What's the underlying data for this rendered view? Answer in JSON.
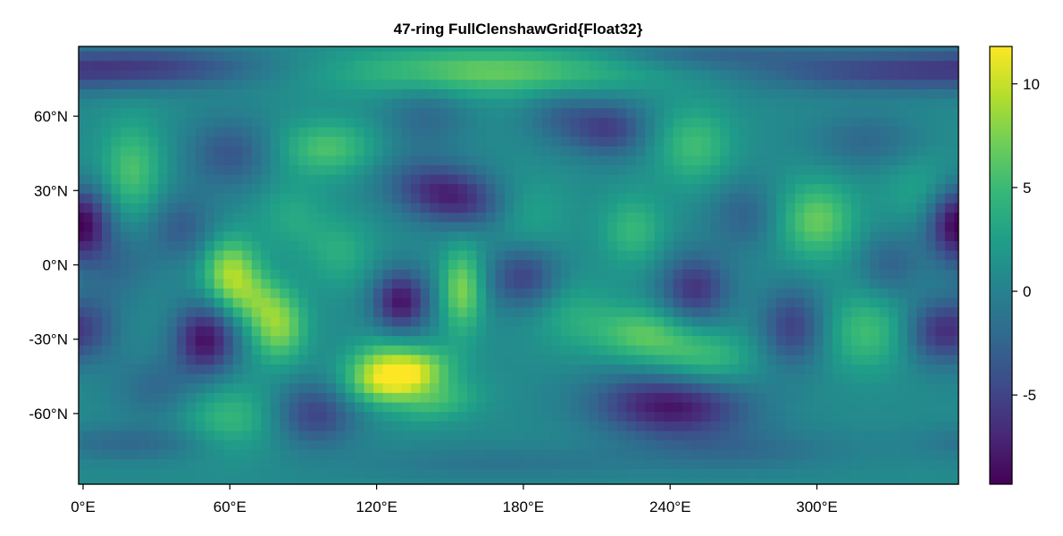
{
  "chart_data": {
    "type": "heatmap",
    "title": "47-ring FullClenshawGrid{Float32}",
    "xlabel": "",
    "ylabel": "",
    "x_range": [
      0,
      360
    ],
    "y_range": [
      -90,
      90
    ],
    "x_ticks": [
      {
        "value": 0,
        "label": "0°E"
      },
      {
        "value": 60,
        "label": "60°E"
      },
      {
        "value": 120,
        "label": "120°E"
      },
      {
        "value": 180,
        "label": "180°E"
      },
      {
        "value": 240,
        "label": "240°E"
      },
      {
        "value": 300,
        "label": "300°E"
      }
    ],
    "y_ticks": [
      {
        "value": 60,
        "label": "60°N"
      },
      {
        "value": 30,
        "label": "30°N"
      },
      {
        "value": 0,
        "label": "0°N"
      },
      {
        "value": -30,
        "label": "-30°N"
      },
      {
        "value": -60,
        "label": "-60°N"
      }
    ],
    "grid": false,
    "grid_rings": 47,
    "grid_lon_points": 94,
    "colormap": "viridis",
    "colorbar": {
      "range": [
        -9.3,
        11.8
      ],
      "placement": "right",
      "ticks": [
        {
          "value": 10,
          "label": "10"
        },
        {
          "value": 5,
          "label": "5"
        },
        {
          "value": 0,
          "label": "0"
        },
        {
          "value": -5,
          "label": "-5"
        }
      ]
    },
    "background_value": 0.8,
    "features": [
      {
        "lon": 130,
        "lat": -45,
        "value": 11.5,
        "sx": 12,
        "sy": 7,
        "tilt": -0.6
      },
      {
        "lon": 120,
        "lat": -38,
        "value": 4,
        "sx": 10,
        "sy": 8,
        "tilt": -0.5
      },
      {
        "lon": 145,
        "lat": -55,
        "value": 4,
        "sx": 12,
        "sy": 6,
        "tilt": -0.5
      },
      {
        "lon": 60,
        "lat": -3,
        "value": 8,
        "sx": 8,
        "sy": 10,
        "tilt": 0
      },
      {
        "lon": 80,
        "lat": -25,
        "value": 7,
        "sx": 8,
        "sy": 10,
        "tilt": 0
      },
      {
        "lon": 70,
        "lat": -14,
        "value": 4,
        "sx": 8,
        "sy": 8,
        "tilt": 0
      },
      {
        "lon": 155,
        "lat": -10,
        "value": 7,
        "sx": 6,
        "sy": 12,
        "tilt": 0
      },
      {
        "lon": 165,
        "lat": 78,
        "value": 6,
        "sx": 45,
        "sy": 7,
        "tilt": 0
      },
      {
        "lon": 100,
        "lat": 47,
        "value": 5,
        "sx": 14,
        "sy": 8,
        "tilt": 0
      },
      {
        "lon": 20,
        "lat": 38,
        "value": 5,
        "sx": 9,
        "sy": 14,
        "tilt": 0
      },
      {
        "lon": 250,
        "lat": 48,
        "value": 4.5,
        "sx": 11,
        "sy": 11,
        "tilt": 0
      },
      {
        "lon": 300,
        "lat": 18,
        "value": 6,
        "sx": 11,
        "sy": 11,
        "tilt": 0
      },
      {
        "lon": 225,
        "lat": 14,
        "value": 4,
        "sx": 9,
        "sy": 10,
        "tilt": 0
      },
      {
        "lon": 230,
        "lat": -28,
        "value": 5.5,
        "sx": 15,
        "sy": 8,
        "tilt": 0.1
      },
      {
        "lon": 255,
        "lat": -38,
        "value": 4,
        "sx": 14,
        "sy": 8,
        "tilt": 0
      },
      {
        "lon": 320,
        "lat": -27,
        "value": 4.5,
        "sx": 11,
        "sy": 11,
        "tilt": 0
      },
      {
        "lon": 60,
        "lat": -62,
        "value": 4,
        "sx": 14,
        "sy": 10,
        "tilt": 0
      },
      {
        "lon": 180,
        "lat": 20,
        "value": 3,
        "sx": 12,
        "sy": 10,
        "tilt": 0
      },
      {
        "lon": 105,
        "lat": 5,
        "value": 3,
        "sx": 10,
        "sy": 10,
        "tilt": 0
      },
      {
        "lon": 85,
        "lat": 20,
        "value": 2.5,
        "sx": 10,
        "sy": 10,
        "tilt": 0
      },
      {
        "lon": 345,
        "lat": 30,
        "value": 2.5,
        "sx": 12,
        "sy": 10,
        "tilt": 0
      },
      {
        "lon": 200,
        "lat": -20,
        "value": 2.5,
        "sx": 12,
        "sy": 10,
        "tilt": 0
      },
      {
        "lon": 50,
        "lat": -30,
        "value": -9.2,
        "sx": 9,
        "sy": 10,
        "tilt": 0
      },
      {
        "lon": 130,
        "lat": -15,
        "value": -9,
        "sx": 8,
        "sy": 9,
        "tilt": 0
      },
      {
        "lon": 150,
        "lat": 28,
        "value": -8.5,
        "sx": 16,
        "sy": 9,
        "tilt": 0.6
      },
      {
        "lon": 240,
        "lat": -57,
        "value": -9,
        "sx": 22,
        "sy": 9,
        "tilt": 0.2
      },
      {
        "lon": 30,
        "lat": 80,
        "value": -5,
        "sx": 35,
        "sy": 6,
        "tilt": 0
      },
      {
        "lon": 325,
        "lat": 78,
        "value": -5,
        "sx": 40,
        "sy": 6,
        "tilt": 0
      },
      {
        "lon": 255,
        "lat": 85,
        "value": -3,
        "sx": 30,
        "sy": 4,
        "tilt": 0
      },
      {
        "lon": 215,
        "lat": 55,
        "value": -6,
        "sx": 11,
        "sy": 8,
        "tilt": 0
      },
      {
        "lon": 195,
        "lat": 60,
        "value": -3,
        "sx": 10,
        "sy": 8,
        "tilt": 0
      },
      {
        "lon": 60,
        "lat": 45,
        "value": -4.5,
        "sx": 12,
        "sy": 10,
        "tilt": 0
      },
      {
        "lon": 140,
        "lat": 60,
        "value": -3,
        "sx": 12,
        "sy": 10,
        "tilt": 0
      },
      {
        "lon": 355,
        "lat": 17,
        "value": -7,
        "sx": 8,
        "sy": 11,
        "tilt": 0
      },
      {
        "lon": 3,
        "lat": 17,
        "value": -5,
        "sx": 8,
        "sy": 11,
        "tilt": 0
      },
      {
        "lon": 40,
        "lat": 15,
        "value": -4,
        "sx": 10,
        "sy": 10,
        "tilt": 0
      },
      {
        "lon": 180,
        "lat": -5,
        "value": -6,
        "sx": 10,
        "sy": 9,
        "tilt": 0
      },
      {
        "lon": 250,
        "lat": -10,
        "value": -7,
        "sx": 10,
        "sy": 10,
        "tilt": 0
      },
      {
        "lon": 290,
        "lat": -25,
        "value": -6,
        "sx": 9,
        "sy": 11,
        "tilt": 0
      },
      {
        "lon": 350,
        "lat": -27,
        "value": -6.5,
        "sx": 9,
        "sy": 9,
        "tilt": 0
      },
      {
        "lon": 5,
        "lat": -25,
        "value": -3.5,
        "sx": 8,
        "sy": 10,
        "tilt": 0
      },
      {
        "lon": 95,
        "lat": -60,
        "value": -6,
        "sx": 12,
        "sy": 9,
        "tilt": 0
      },
      {
        "lon": 30,
        "lat": -50,
        "value": -3,
        "sx": 12,
        "sy": 9,
        "tilt": 0
      },
      {
        "lon": 320,
        "lat": 50,
        "value": -3,
        "sx": 15,
        "sy": 8,
        "tilt": 0
      },
      {
        "lon": 270,
        "lat": 20,
        "value": -3.5,
        "sx": 10,
        "sy": 10,
        "tilt": 0
      },
      {
        "lon": 330,
        "lat": 0,
        "value": -3.5,
        "sx": 9,
        "sy": 9,
        "tilt": 0
      },
      {
        "lon": 15,
        "lat": 0,
        "value": -2.5,
        "sx": 10,
        "sy": 10,
        "tilt": 0
      },
      {
        "lon": 20,
        "lat": -72,
        "value": -3,
        "sx": 25,
        "sy": 5,
        "tilt": 0
      },
      {
        "lon": 270,
        "lat": -75,
        "value": -2.5,
        "sx": 30,
        "sy": 6,
        "tilt": 0
      },
      {
        "lon": 170,
        "lat": -80,
        "value": -2,
        "sx": 40,
        "sy": 5,
        "tilt": 0
      }
    ]
  }
}
